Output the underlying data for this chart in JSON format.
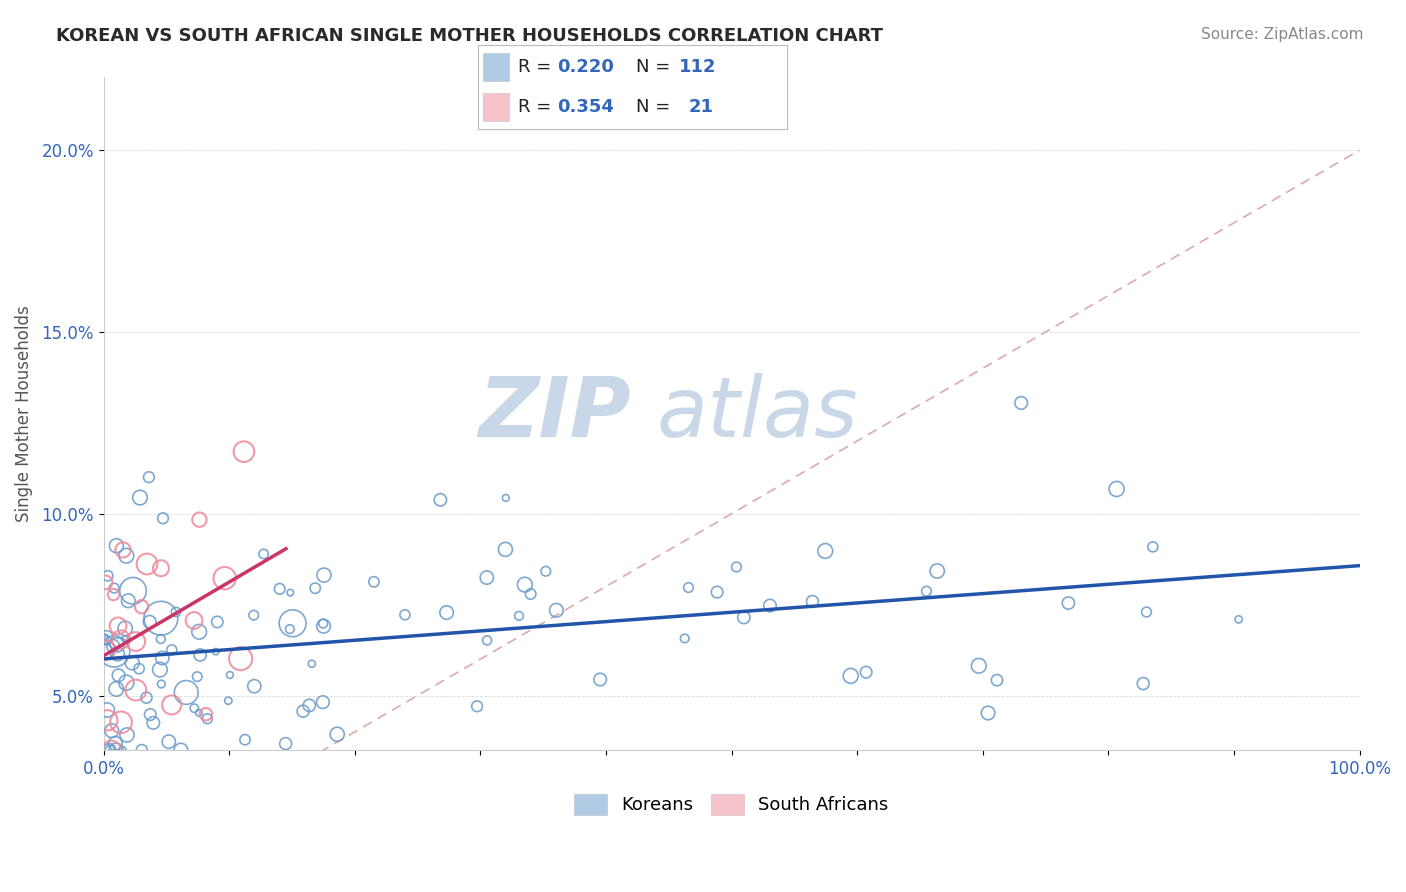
{
  "title": "KOREAN VS SOUTH AFRICAN SINGLE MOTHER HOUSEHOLDS CORRELATION CHART",
  "source": "Source: ZipAtlas.com",
  "ylabel": "Single Mother Households",
  "xlim": [
    0,
    100
  ],
  "ylim": [
    3.5,
    22
  ],
  "yticks": [
    5.0,
    10.0,
    15.0,
    20.0
  ],
  "xticks": [
    0,
    10,
    20,
    30,
    40,
    50,
    60,
    70,
    80,
    90,
    100
  ],
  "korean_R": 0.22,
  "korean_N": 112,
  "sa_R": 0.354,
  "sa_N": 21,
  "korean_color": "#6699cc",
  "sa_color": "#ee8899",
  "korean_line_color": "#2255aa",
  "sa_line_color": "#cc3366",
  "diag_line_color": "#ddaaaa",
  "title_fontsize": 13,
  "source_fontsize": 11,
  "legend_color": "#3366bb",
  "watermark_zip": "ZIP",
  "watermark_atlas": "atlas",
  "watermark_color": "#c8d8e8",
  "background_color": "#ffffff"
}
